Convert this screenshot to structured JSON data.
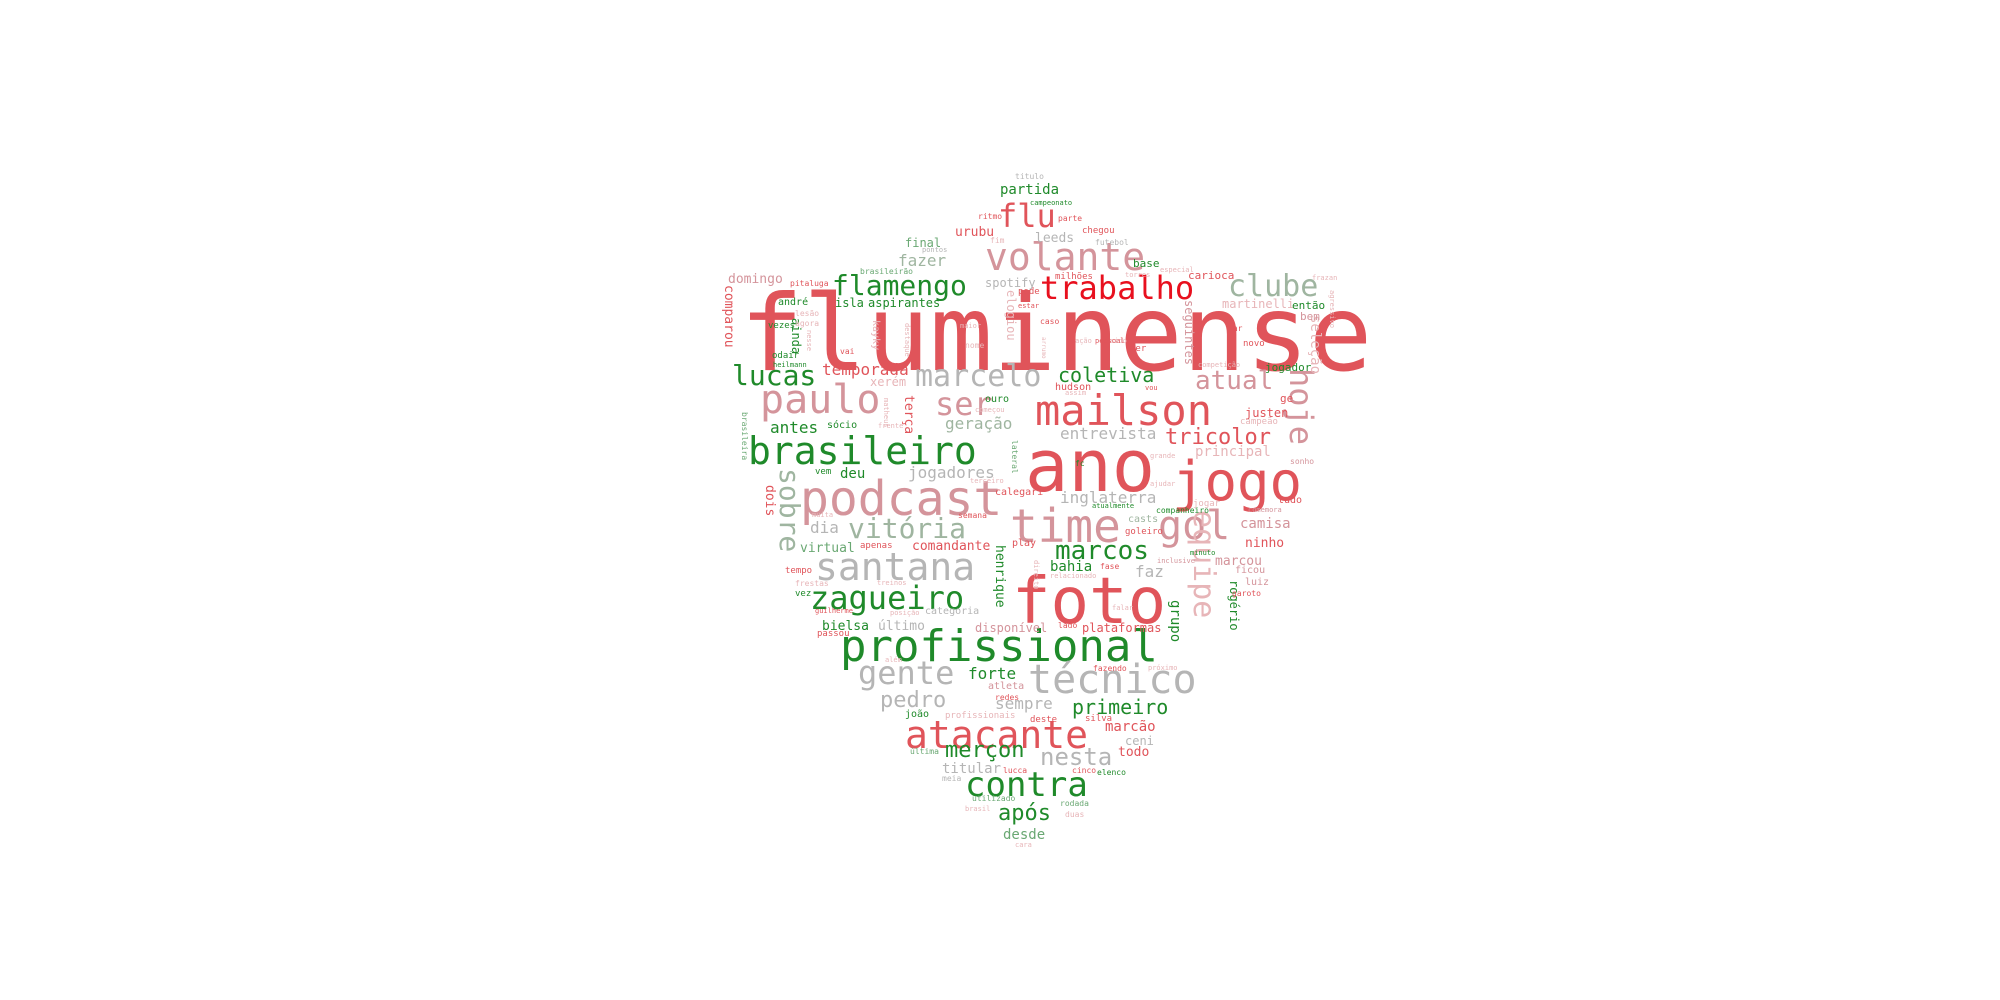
{
  "palette": {
    "red": "#e0545a",
    "bright_red": "#e8101e",
    "green": "#1f8a2a",
    "light_green": "#6aa873",
    "pink": "#d4949b",
    "gray": "#b5b5b5",
    "sage": "#9fb5a0",
    "light_pink": "#e7b5b8"
  },
  "words": [
    {
      "text": "fluminense",
      "color": "red"
    },
    {
      "text": "ano",
      "color": "red"
    },
    {
      "text": "foto",
      "color": "red"
    },
    {
      "text": "jogo",
      "color": "red"
    },
    {
      "text": "podcast",
      "color": "pink"
    },
    {
      "text": "profissional",
      "color": "green"
    },
    {
      "text": "time",
      "color": "pink"
    },
    {
      "text": "técnico",
      "color": "gray"
    },
    {
      "text": "atacante",
      "color": "red"
    },
    {
      "text": "santana",
      "color": "gray"
    },
    {
      "text": "mailson",
      "color": "red"
    },
    {
      "text": "brasileiro",
      "color": "green"
    },
    {
      "text": "volante",
      "color": "pink"
    },
    {
      "text": "paulo",
      "color": "pink"
    },
    {
      "text": "contra",
      "color": "green"
    },
    {
      "text": "zagueiro",
      "color": "green"
    },
    {
      "text": "trabalho",
      "color": "bright_red"
    },
    {
      "text": "gol",
      "color": "pink"
    },
    {
      "text": "marcelo",
      "color": "gray"
    },
    {
      "text": "clube",
      "color": "sage"
    },
    {
      "text": "flamengo",
      "color": "green"
    },
    {
      "text": "lucas",
      "color": "green"
    },
    {
      "text": "gente",
      "color": "gray"
    },
    {
      "text": "vitória",
      "color": "sage"
    },
    {
      "text": "ser",
      "color": "pink"
    },
    {
      "text": "flu",
      "color": "red"
    },
    {
      "text": "atual",
      "color": "pink"
    },
    {
      "text": "marcos",
      "color": "green"
    },
    {
      "text": "hoje",
      "color": "pink"
    },
    {
      "text": "equipe",
      "color": "light_pink"
    },
    {
      "text": "sobre",
      "color": "sage"
    },
    {
      "text": "nesta",
      "color": "gray"
    },
    {
      "text": "pedro",
      "color": "gray"
    },
    {
      "text": "tricolor",
      "color": "red"
    },
    {
      "text": "coletiva",
      "color": "green"
    },
    {
      "text": "primeiro",
      "color": "green"
    },
    {
      "text": "merçon",
      "color": "green"
    },
    {
      "text": "após",
      "color": "green"
    },
    {
      "text": "temporada",
      "color": "red"
    },
    {
      "text": "fazer",
      "color": "sage"
    },
    {
      "text": "antes",
      "color": "green"
    },
    {
      "text": "geração",
      "color": "sage"
    },
    {
      "text": "entrevista",
      "color": "gray"
    },
    {
      "text": "inglaterra",
      "color": "gray"
    },
    {
      "text": "jogadores",
      "color": "gray"
    },
    {
      "text": "dia",
      "color": "gray"
    },
    {
      "text": "forte",
      "color": "green"
    },
    {
      "text": "sempre",
      "color": "gray"
    },
    {
      "text": "faz",
      "color": "gray"
    },
    {
      "text": "partida",
      "color": "green"
    },
    {
      "text": "principal",
      "color": "light_pink"
    },
    {
      "text": "camisa",
      "color": "pink"
    },
    {
      "text": "marcão",
      "color": "red"
    },
    {
      "text": "desde",
      "color": "light_green"
    },
    {
      "text": "grupo",
      "color": "green"
    },
    {
      "text": "seleção",
      "color": "light_pink"
    },
    {
      "text": "bahia",
      "color": "green"
    },
    {
      "text": "deu",
      "color": "green"
    },
    {
      "text": "comandante",
      "color": "red"
    },
    {
      "text": "virtual",
      "color": "light_green"
    },
    {
      "text": "bielsa",
      "color": "green"
    },
    {
      "text": "último",
      "color": "gray"
    },
    {
      "text": "henrique",
      "color": "green"
    },
    {
      "text": "terça",
      "color": "red"
    },
    {
      "text": "todo",
      "color": "red"
    },
    {
      "text": "ceni",
      "color": "gray"
    },
    {
      "text": "titular",
      "color": "gray"
    },
    {
      "text": "urubu",
      "color": "red"
    },
    {
      "text": "leeds",
      "color": "gray"
    },
    {
      "text": "final",
      "color": "light_green"
    },
    {
      "text": "domingo",
      "color": "pink"
    },
    {
      "text": "isla",
      "color": "green"
    },
    {
      "text": "aspirantes",
      "color": "green"
    },
    {
      "text": "ninho",
      "color": "red"
    },
    {
      "text": "marcou",
      "color": "pink"
    },
    {
      "text": "dois",
      "color": "red"
    },
    {
      "text": "comparou",
      "color": "red"
    },
    {
      "text": "rogério",
      "color": "green"
    },
    {
      "text": "seguintes",
      "color": "pink"
    },
    {
      "text": "disponível",
      "color": "pink"
    },
    {
      "text": "plataformas",
      "color": "red"
    },
    {
      "text": "elogiou",
      "color": "light_pink"
    },
    {
      "text": "ainda",
      "color": "green"
    },
    {
      "text": "justen",
      "color": "red"
    },
    {
      "text": "spotify",
      "color": "gray"
    },
    {
      "text": "xerém",
      "color": "light_pink"
    },
    {
      "text": "martinelli",
      "color": "light_pink"
    },
    {
      "text": "então",
      "color": "green"
    },
    {
      "text": "jogador",
      "color": "green"
    },
    {
      "text": "bem",
      "color": "pink"
    },
    {
      "text": "carioca",
      "color": "red"
    },
    {
      "text": "base",
      "color": "green"
    },
    {
      "text": "sócio",
      "color": "green"
    },
    {
      "text": "hudson",
      "color": "red"
    },
    {
      "text": "ouro",
      "color": "green"
    },
    {
      "text": "casts",
      "color": "sage"
    },
    {
      "text": "calegari",
      "color": "red"
    },
    {
      "text": "play",
      "color": "red"
    },
    {
      "text": "categoria",
      "color": "gray"
    },
    {
      "text": "luiz",
      "color": "pink"
    },
    {
      "text": "ficou",
      "color": "pink"
    },
    {
      "text": "tudo",
      "color": "red"
    },
    {
      "text": "ge",
      "color": "red"
    },
    {
      "text": "andré",
      "color": "green"
    },
    {
      "text": "vezes",
      "color": "green"
    },
    {
      "text": "odair",
      "color": "green"
    },
    {
      "text": "kayky",
      "color": "light_pink"
    },
    {
      "text": "pode",
      "color": "red"
    },
    {
      "text": "milhões",
      "color": "red"
    },
    {
      "text": "chegou",
      "color": "red"
    },
    {
      "text": "parte",
      "color": "red"
    },
    {
      "text": "ritmo",
      "color": "red"
    },
    {
      "text": "fim",
      "color": "light_pink"
    },
    {
      "text": "futebol",
      "color": "gray"
    },
    {
      "text": "especial",
      "color": "light_pink"
    },
    {
      "text": "torres",
      "color": "light_pink"
    },
    {
      "text": "frazan",
      "color": "light_pink"
    },
    {
      "text": "agressivo",
      "color": "light_pink"
    },
    {
      "text": "novo",
      "color": "red"
    },
    {
      "text": "sonho",
      "color": "pink"
    },
    {
      "text": "atleta",
      "color": "pink"
    },
    {
      "text": "redes",
      "color": "red"
    },
    {
      "text": "deste",
      "color": "red"
    },
    {
      "text": "silva",
      "color": "red"
    },
    {
      "text": "joão",
      "color": "green"
    },
    {
      "text": "profissionais",
      "color": "light_pink"
    },
    {
      "text": "lucca",
      "color": "red"
    },
    {
      "text": "cinco",
      "color": "red"
    },
    {
      "text": "elenco",
      "color": "green"
    },
    {
      "text": "meia",
      "color": "gray"
    },
    {
      "text": "última",
      "color": "light_green"
    },
    {
      "text": "utilizado",
      "color": "light_green"
    },
    {
      "text": "brasil",
      "color": "light_pink"
    },
    {
      "text": "rodada",
      "color": "light_green"
    },
    {
      "text": "duas",
      "color": "light_pink"
    },
    {
      "text": "cara",
      "color": "light_pink"
    },
    {
      "text": "guilherme",
      "color": "red"
    },
    {
      "text": "passou",
      "color": "red"
    },
    {
      "text": "frestas",
      "color": "light_pink"
    },
    {
      "text": "tempo",
      "color": "red"
    },
    {
      "text": "vez",
      "color": "green"
    },
    {
      "text": "treinos",
      "color": "light_pink"
    },
    {
      "text": "posição",
      "color": "light_pink"
    },
    {
      "text": "apenas",
      "color": "red"
    },
    {
      "text": "muita",
      "color": "light_pink"
    },
    {
      "text": "vem",
      "color": "green"
    },
    {
      "text": "brasileira",
      "color": "light_green"
    },
    {
      "text": "lesão",
      "color": "light_pink"
    },
    {
      "text": "agora",
      "color": "light_pink"
    },
    {
      "text": "heilmann",
      "color": "green"
    },
    {
      "text": "nesse",
      "color": "light_pink"
    },
    {
      "text": "vai",
      "color": "red"
    },
    {
      "text": "maior",
      "color": "light_pink"
    },
    {
      "text": "nome",
      "color": "light_pink"
    },
    {
      "text": "caso",
      "color": "red"
    },
    {
      "text": "ação",
      "color": "light_pink"
    },
    {
      "text": "sido",
      "color": "light_pink"
    },
    {
      "text": "pessoal",
      "color": "red"
    },
    {
      "text": "dar",
      "color": "red"
    },
    {
      "text": "competição",
      "color": "light_pink"
    },
    {
      "text": "vou",
      "color": "red"
    },
    {
      "text": "grande",
      "color": "light_pink"
    },
    {
      "text": "ajudar",
      "color": "light_pink"
    },
    {
      "text": "jogar",
      "color": "light_pink"
    },
    {
      "text": "companheiro",
      "color": "green"
    },
    {
      "text": "comemora",
      "color": "pink"
    },
    {
      "text": "campeão",
      "color": "light_pink"
    },
    {
      "text": "atualmente",
      "color": "green"
    },
    {
      "text": "goleiro",
      "color": "red"
    },
    {
      "text": "inclusive",
      "color": "pink"
    },
    {
      "text": "minuto",
      "color": "green"
    },
    {
      "text": "garoto",
      "color": "red"
    },
    {
      "text": "fase",
      "color": "red"
    },
    {
      "text": "lado",
      "color": "red"
    },
    {
      "text": "fazendo",
      "color": "red"
    },
    {
      "text": "próximo",
      "color": "light_pink"
    },
    {
      "text": "além",
      "color": "light_pink"
    },
    {
      "text": "falar",
      "color": "light_pink"
    },
    {
      "text": "semana",
      "color": "red"
    },
    {
      "text": "terceiro",
      "color": "light_pink"
    },
    {
      "text": "lateral",
      "color": "light_green"
    },
    {
      "text": "fc",
      "color": "green"
    },
    {
      "text": "estar",
      "color": "red"
    },
    {
      "text": "titulo",
      "color": "gray"
    },
    {
      "text": "campeonato",
      "color": "green"
    },
    {
      "text": "pontos",
      "color": "gray"
    },
    {
      "text": "pitaluga",
      "color": "red"
    },
    {
      "text": "brasileirão",
      "color": "light_green"
    },
    {
      "text": "matheus",
      "color": "light_pink"
    },
    {
      "text": "frente",
      "color": "light_pink"
    },
    {
      "text": "começou",
      "color": "light_pink"
    },
    {
      "text": "direito",
      "color": "light_pink"
    },
    {
      "text": "relacionado",
      "color": "light_pink"
    },
    {
      "text": "destaque",
      "color": "light_pink"
    },
    {
      "text": "arrumo",
      "color": "light_pink"
    },
    {
      "text": "assim",
      "color": "light_pink"
    },
    {
      "text": "ter",
      "color": "red"
    }
  ]
}
